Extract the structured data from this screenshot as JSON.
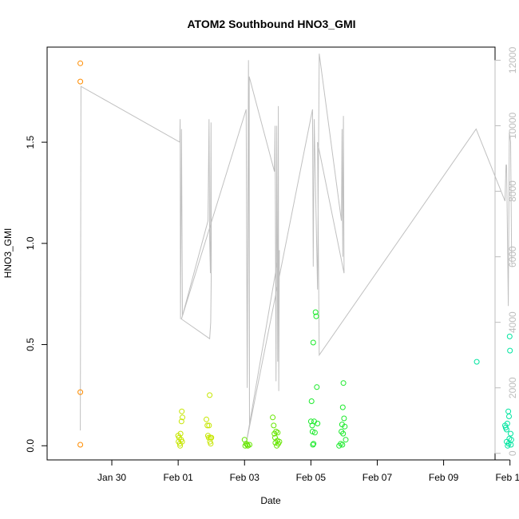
{
  "chart_data": {
    "type": "scatter",
    "title": "ATOM2 Southbound HNO3_GMI",
    "xlabel": "Date",
    "ylabel": "HNO3_GMI",
    "xlim": [
      -1.95,
      11.55
    ],
    "ylim": [
      -0.07,
      1.97
    ],
    "y2lim": [
      -200,
      12400
    ],
    "x_ticks": [
      {
        "value": 0,
        "label": "Jan 30"
      },
      {
        "value": 2,
        "label": "Feb 01"
      },
      {
        "value": 4,
        "label": "Feb 03"
      },
      {
        "value": 6,
        "label": "Feb 05"
      },
      {
        "value": 8,
        "label": "Feb 07"
      },
      {
        "value": 10,
        "label": "Feb 09"
      },
      {
        "value": 12,
        "label": "Feb 11"
      }
    ],
    "y_ticks": [
      {
        "value": 0.0,
        "label": "0.0"
      },
      {
        "value": 0.5,
        "label": "0.5"
      },
      {
        "value": 1.0,
        "label": "1.0"
      },
      {
        "value": 1.5,
        "label": "1.5"
      }
    ],
    "y2_ticks": [
      {
        "value": 0,
        "label": "0"
      },
      {
        "value": 2000,
        "label": "2000"
      },
      {
        "value": 4000,
        "label": "4000"
      },
      {
        "value": 6000,
        "label": "6000"
      },
      {
        "value": 8000,
        "label": "8000"
      },
      {
        "value": 10000,
        "label": "10000"
      },
      {
        "value": 12000,
        "label": "12000"
      }
    ],
    "grid": false,
    "legend": "none",
    "secondary_line": {
      "color": "#c0c0c0",
      "points": [
        [
          -0.95,
          700
        ],
        [
          -0.93,
          11200
        ],
        [
          2.05,
          9500
        ],
        [
          2.06,
          10200
        ],
        [
          2.07,
          4100
        ],
        [
          2.1,
          9900
        ],
        [
          2.13,
          4200
        ],
        [
          2.9,
          7100
        ],
        [
          2.93,
          10200
        ],
        [
          2.95,
          6500
        ],
        [
          2.97,
          5500
        ],
        [
          2.99,
          10100
        ],
        [
          3.0,
          5700
        ],
        [
          2.98,
          4000
        ],
        [
          2.95,
          3500
        ],
        [
          2.1,
          4100
        ],
        [
          4.05,
          10500
        ],
        [
          4.08,
          2000
        ],
        [
          4.12,
          12000
        ],
        [
          4.15,
          800
        ],
        [
          4.14,
          11500
        ],
        [
          4.9,
          8600
        ],
        [
          4.92,
          10000
        ],
        [
          4.95,
          2200
        ],
        [
          4.97,
          10000
        ],
        [
          5.0,
          2800
        ],
        [
          5.02,
          10600
        ],
        [
          5.03,
          1900
        ],
        [
          5.05,
          6200
        ],
        [
          4.05,
          300
        ],
        [
          6.05,
          10500
        ],
        [
          6.07,
          5700
        ],
        [
          6.1,
          10200
        ],
        [
          6.2,
          5000
        ],
        [
          6.25,
          12200
        ],
        [
          6.92,
          7100
        ],
        [
          6.94,
          9900
        ],
        [
          6.96,
          6000
        ],
        [
          6.98,
          10300
        ],
        [
          7.0,
          5500
        ],
        [
          6.2,
          9500
        ],
        [
          6.25,
          3000
        ],
        [
          10.98,
          9900
        ],
        [
          11.85,
          7700
        ],
        [
          11.88,
          8800
        ],
        [
          11.9,
          8800
        ],
        [
          11.95,
          4500
        ],
        [
          11.98,
          9800
        ],
        [
          12.02,
          9500
        ],
        [
          12.05,
          5800
        ]
      ]
    },
    "series": [
      {
        "color": "#ff8c00",
        "points": [
          [
            -0.95,
            1.89
          ],
          [
            -0.95,
            1.8
          ],
          [
            -0.95,
            0.265
          ],
          [
            -0.95,
            0.005
          ]
        ]
      },
      {
        "color": "#c6e600",
        "points": [
          [
            2.0,
            0.05
          ],
          [
            2.01,
            0.02
          ],
          [
            2.03,
            0.04
          ],
          [
            2.05,
            0.01
          ],
          [
            2.07,
            0.06
          ],
          [
            2.09,
            0.03
          ],
          [
            2.1,
            0.12
          ],
          [
            2.11,
            0.17
          ],
          [
            2.13,
            0.14
          ],
          [
            2.06,
            0.0
          ],
          [
            2.12,
            0.02
          ],
          [
            2.85,
            0.13
          ],
          [
            2.88,
            0.1
          ],
          [
            2.9,
            0.05
          ],
          [
            2.92,
            0.04
          ],
          [
            2.95,
            0.25
          ],
          [
            2.96,
            0.02
          ],
          [
            2.97,
            0.04
          ],
          [
            2.98,
            0.01
          ],
          [
            3.0,
            0.04
          ],
          [
            2.93,
            0.1
          ]
        ]
      },
      {
        "color": "#66e600",
        "points": [
          [
            4.0,
            0.03
          ],
          [
            4.02,
            0.0
          ],
          [
            4.05,
            0.01
          ],
          [
            4.08,
            0.005
          ],
          [
            4.1,
            0.0
          ],
          [
            4.15,
            0.005
          ],
          [
            4.85,
            0.14
          ],
          [
            4.88,
            0.1
          ],
          [
            4.9,
            0.06
          ],
          [
            4.92,
            0.04
          ],
          [
            4.95,
            0.07
          ],
          [
            4.97,
            0.0
          ],
          [
            4.99,
            0.025
          ],
          [
            5.0,
            0.065
          ],
          [
            5.02,
            0.01
          ],
          [
            5.05,
            0.02
          ],
          [
            4.93,
            0.015
          ]
        ]
      },
      {
        "color": "#1aea2a",
        "points": [
          [
            6.0,
            0.12
          ],
          [
            6.02,
            0.22
          ],
          [
            6.04,
            0.1
          ],
          [
            6.05,
            0.07
          ],
          [
            6.07,
            0.51
          ],
          [
            6.1,
            0.12
          ],
          [
            6.12,
            0.065
          ],
          [
            6.14,
            0.66
          ],
          [
            6.16,
            0.64
          ],
          [
            6.18,
            0.29
          ],
          [
            6.2,
            0.11
          ],
          [
            6.08,
            0.01
          ],
          [
            6.06,
            0.005
          ],
          [
            6.85,
            0.0
          ],
          [
            6.9,
            0.01
          ],
          [
            6.92,
            0.07
          ],
          [
            6.94,
            0.105
          ],
          [
            6.96,
            0.19
          ],
          [
            6.98,
            0.31
          ],
          [
            7.0,
            0.135
          ],
          [
            7.02,
            0.095
          ],
          [
            7.05,
            0.03
          ],
          [
            6.97,
            0.06
          ],
          [
            6.95,
            0.005
          ]
        ]
      },
      {
        "color": "#00e5a0",
        "points": [
          [
            11.0,
            0.415
          ],
          [
            11.85,
            0.1
          ],
          [
            11.87,
            0.09
          ],
          [
            11.9,
            0.08
          ],
          [
            11.92,
            0.11
          ],
          [
            11.95,
            0.17
          ],
          [
            11.97,
            0.145
          ],
          [
            11.99,
            0.54
          ],
          [
            12.0,
            0.47
          ],
          [
            12.02,
            0.06
          ],
          [
            12.04,
            0.03
          ],
          [
            11.9,
            0.02
          ],
          [
            11.93,
            0.0
          ],
          [
            11.96,
            0.01
          ],
          [
            11.98,
            0.035
          ],
          [
            12.03,
            0.005
          ]
        ]
      }
    ]
  }
}
